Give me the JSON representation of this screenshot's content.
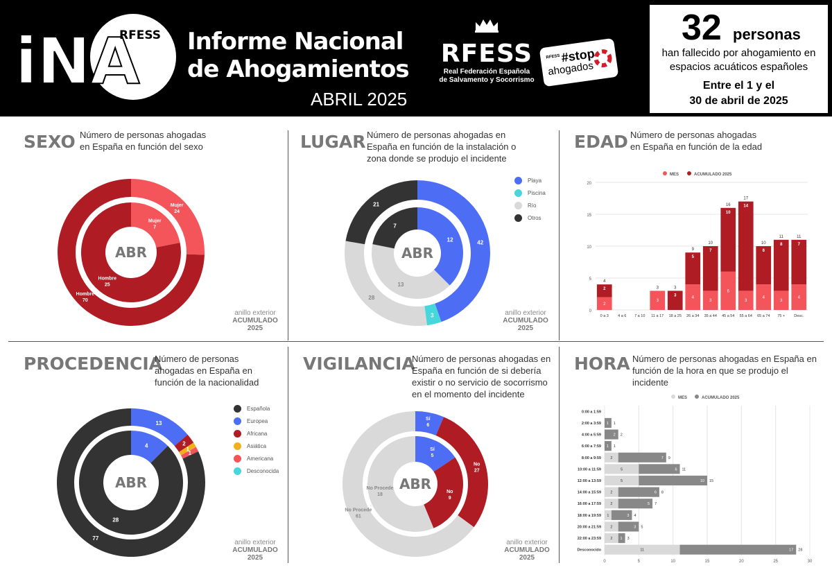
{
  "header": {
    "logo_text": "iNA",
    "logo_badge": "RFESS",
    "title_line1": "Informe Nacional",
    "title_line2": "de Ahogamientos",
    "month": "ABRIL 2025",
    "rfess_word": "RFESS",
    "rfess_sub1": "Real Federación Española",
    "rfess_sub2": "de Salvamento y Socorrismo",
    "stop_small": "RFESS",
    "stop_top": "#stop",
    "stop_bottom": "ahogados",
    "summary_number": "32",
    "summary_unit": "personas",
    "summary_desc1": "han fallecido por ahogamiento en",
    "summary_desc2": "espacios acuáticos españoles",
    "summary_dates1": "Entre el 1 y el",
    "summary_dates2": "30 de abril de 2025"
  },
  "ring_note": {
    "line1": "anillo exterior",
    "line2": "ACUMULADO",
    "line3": "2025"
  },
  "center_label": "ABR",
  "colors": {
    "red_dark": "#b01c24",
    "red_light": "#f4555a",
    "blue": "#4d6ef4",
    "cyan": "#46d6dc",
    "gray_light": "#d9d9d9",
    "gray_dark": "#333333",
    "yellow": "#f2b01e",
    "gray_mid": "#888888"
  },
  "panels": {
    "sexo": {
      "title": "SEXO",
      "desc": "Número de personas ahogadas en España en función del sexo"
    },
    "lugar": {
      "title": "LUGAR",
      "desc": "Número de personas ahogadas en España en función de la instalación o zona donde se produjo el incidente"
    },
    "edad": {
      "title": "EDAD",
      "desc": "Número de personas ahogadas en España en función de la edad"
    },
    "procedencia": {
      "title": "PROCEDENCIA",
      "desc": "Número de personas ahogadas en España en función de la nacionalidad"
    },
    "vigilancia": {
      "title": "VIGILANCIA",
      "desc": "Número de personas ahogadas en España en función de si debería existir o no servicio de socorrismo en el momento del incidente"
    },
    "hora": {
      "title": "HORA",
      "desc": "Número de personas ahogadas en España en función de la hora en que se produjo el incidente"
    }
  },
  "chart_data": [
    {
      "id": "sexo",
      "type": "pie",
      "title": "SEXO",
      "series": [
        {
          "name": "anillo exterior ACUMULADO 2025",
          "slices": [
            {
              "label": "Mujer",
              "value": 24,
              "color": "#f4555a"
            },
            {
              "label": "Hombre",
              "value": 70,
              "color": "#b01c24"
            }
          ]
        },
        {
          "name": "ABR",
          "slices": [
            {
              "label": "Mujer",
              "value": 7,
              "color": "#f4555a"
            },
            {
              "label": "Hombre",
              "value": 25,
              "color": "#b01c24"
            }
          ]
        }
      ]
    },
    {
      "id": "lugar",
      "type": "pie",
      "title": "LUGAR",
      "legend": [
        {
          "label": "Playa",
          "color": "#4d6ef4"
        },
        {
          "label": "Piscina",
          "color": "#46d6dc"
        },
        {
          "label": "Río",
          "color": "#d9d9d9"
        },
        {
          "label": "Otros",
          "color": "#333333"
        }
      ],
      "series": [
        {
          "name": "anillo exterior ACUMULADO 2025",
          "slices": [
            {
              "label": "Playa",
              "value": 42,
              "color": "#4d6ef4"
            },
            {
              "label": "Piscina",
              "value": 3,
              "color": "#46d6dc"
            },
            {
              "label": "Río",
              "value": 28,
              "color": "#d9d9d9"
            },
            {
              "label": "Otros",
              "value": 21,
              "color": "#333333"
            }
          ]
        },
        {
          "name": "ABR",
          "slices": [
            {
              "label": "Playa",
              "value": 12,
              "color": "#4d6ef4"
            },
            {
              "label": "Río",
              "value": 13,
              "color": "#d9d9d9"
            },
            {
              "label": "Otros",
              "value": 7,
              "color": "#333333"
            }
          ]
        }
      ]
    },
    {
      "id": "edad",
      "type": "bar",
      "title": "EDAD",
      "legend": [
        {
          "label": "MES",
          "color": "#f4555a"
        },
        {
          "label": "ACUMULADO 2025",
          "color": "#b01c24"
        }
      ],
      "categories": [
        "0 a 3",
        "4 a 6",
        "7 a 10",
        "11 a 17",
        "18 a 25",
        "26 a 34",
        "35 a 44",
        "45 a 54",
        "55 a 64",
        "65 a 74",
        "75 +",
        "Desc."
      ],
      "mes": [
        2,
        0,
        0,
        3,
        0,
        4,
        3,
        6,
        3,
        4,
        3,
        4
      ],
      "resto": [
        2,
        0,
        0,
        0,
        3,
        5,
        7,
        10,
        14,
        6,
        8,
        7
      ],
      "totales": [
        4,
        0,
        0,
        3,
        3,
        9,
        10,
        16,
        17,
        10,
        11,
        11
      ],
      "yticks": [
        0,
        5,
        10,
        15,
        20
      ],
      "ylim": [
        0,
        20
      ]
    },
    {
      "id": "procedencia",
      "type": "pie",
      "title": "PROCEDENCIA",
      "legend": [
        {
          "label": "Española",
          "color": "#333333"
        },
        {
          "label": "Europea",
          "color": "#4d6ef4"
        },
        {
          "label": "Africana",
          "color": "#b01c24"
        },
        {
          "label": "Asiática",
          "color": "#f2b01e"
        },
        {
          "label": "Americana",
          "color": "#f4555a"
        },
        {
          "label": "Desconocida",
          "color": "#46d6dc"
        }
      ],
      "series": [
        {
          "name": "anillo exterior ACUMULADO 2025",
          "slices": [
            {
              "label": "Europea",
              "value": 13,
              "color": "#4d6ef4"
            },
            {
              "label": "Africana",
              "value": 2,
              "color": "#b01c24"
            },
            {
              "label": "Asiática",
              "value": 1,
              "color": "#f2b01e"
            },
            {
              "label": "Americana",
              "value": 1,
              "color": "#f4555a"
            },
            {
              "label": "Española",
              "value": 77,
              "color": "#333333"
            }
          ]
        },
        {
          "name": "ABR",
          "slices": [
            {
              "label": "Europea",
              "value": 4,
              "color": "#4d6ef4"
            },
            {
              "label": "Española",
              "value": 28,
              "color": "#333333"
            }
          ]
        }
      ]
    },
    {
      "id": "vigilancia",
      "type": "pie",
      "title": "VIGILANCIA",
      "series": [
        {
          "name": "anillo exterior ACUMULADO 2025",
          "slices": [
            {
              "label": "Sí",
              "value": 6,
              "color": "#4d6ef4"
            },
            {
              "label": "No",
              "value": 27,
              "color": "#b01c24"
            },
            {
              "label": "No Procede",
              "value": 61,
              "color": "#d9d9d9"
            }
          ]
        },
        {
          "name": "ABR",
          "slices": [
            {
              "label": "Sí",
              "value": 5,
              "color": "#4d6ef4"
            },
            {
              "label": "No",
              "value": 9,
              "color": "#b01c24"
            },
            {
              "label": "No Procede",
              "value": 18,
              "color": "#d9d9d9"
            }
          ]
        }
      ]
    },
    {
      "id": "hora",
      "type": "bar",
      "title": "HORA",
      "orientation": "horizontal",
      "legend": [
        {
          "label": "MES",
          "color": "#d9d9d9"
        },
        {
          "label": "ACUMULADO 2025",
          "color": "#888888"
        }
      ],
      "categories": [
        "0:00 a 1:59",
        "2:00 a 3:59",
        "4:00 a 5:59",
        "6:00 a 7:59",
        "8:00 a 9:59",
        "10:00 a 11:59",
        "12:00 a 13:59",
        "14:00 a 15:59",
        "16:00 a 17:59",
        "18:00 a 19:59",
        "20:00 a 21:59",
        "22:00 a 23:59",
        "Desconocido"
      ],
      "mes": [
        0,
        0,
        0,
        0,
        2,
        5,
        5,
        2,
        2,
        1,
        2,
        2,
        11
      ],
      "resto": [
        0,
        1,
        2,
        1,
        7,
        6,
        10,
        6,
        5,
        3,
        3,
        1,
        17
      ],
      "totales": [
        0,
        1,
        2,
        1,
        9,
        11,
        15,
        8,
        7,
        4,
        5,
        3,
        28
      ],
      "xticks": [
        0,
        5,
        10,
        15,
        20,
        25,
        30
      ],
      "xlim": [
        0,
        30
      ]
    }
  ]
}
